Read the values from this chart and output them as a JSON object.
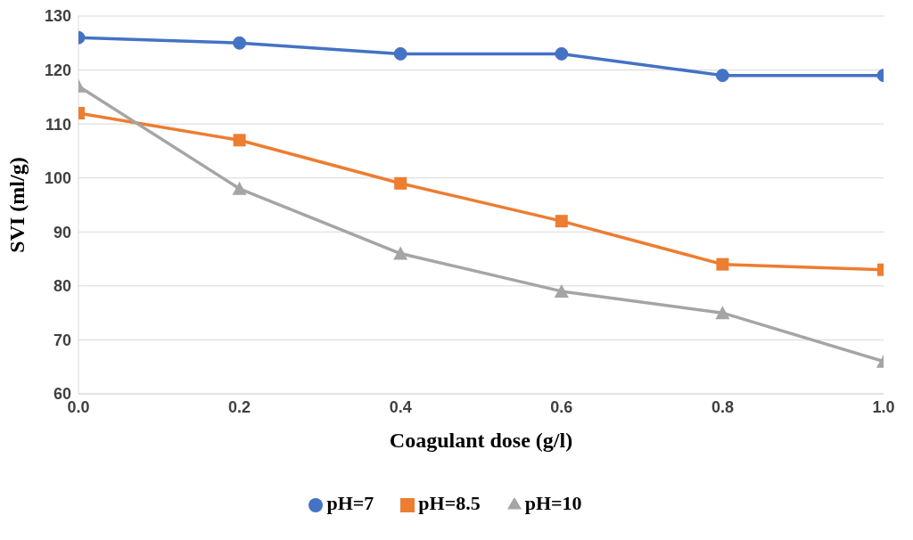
{
  "chart_data": {
    "type": "line",
    "xlabel": "Coagulant  dose (g/l)",
    "ylabel": "SVI (ml/g)",
    "x": [
      0,
      0.2,
      0.4,
      0.6,
      0.8,
      1.0
    ],
    "series": [
      {
        "name": "pH=7",
        "color": "#4472c4",
        "marker": "circle",
        "values": [
          126,
          125,
          123,
          123,
          119,
          119
        ]
      },
      {
        "name": "pH=8.5",
        "color": "#ed7d31",
        "marker": "square",
        "values": [
          112,
          107,
          99,
          92,
          84,
          83
        ]
      },
      {
        "name": "pH=10",
        "color": "#a5a5a5",
        "marker": "triangle",
        "values": [
          117,
          98,
          86,
          79,
          75,
          66
        ]
      }
    ],
    "xlim": [
      0,
      1
    ],
    "xticks": [
      {
        "value": 0,
        "label": "0.0"
      },
      {
        "value": 0.2,
        "label": "0.2"
      },
      {
        "value": 0.4,
        "label": "0.4"
      },
      {
        "value": 0.6,
        "label": "0.6"
      },
      {
        "value": 0.8,
        "label": "0.8"
      },
      {
        "value": 1,
        "label": "1.0"
      }
    ],
    "ylim": [
      60,
      130
    ],
    "yticks": [
      60,
      70,
      80,
      90,
      100,
      110,
      120,
      130
    ],
    "grid": "y",
    "legend": "bottom"
  }
}
